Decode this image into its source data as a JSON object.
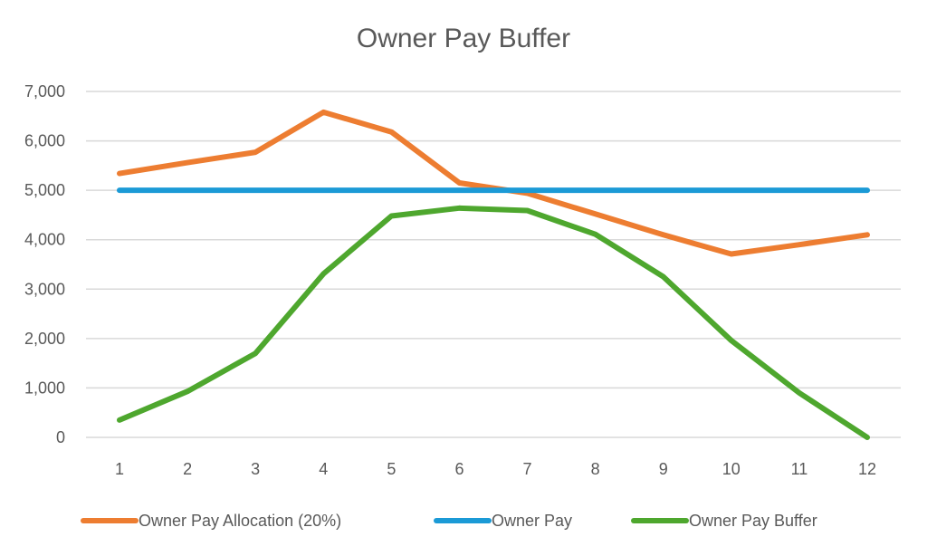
{
  "chart_data": {
    "type": "line",
    "title": "Owner Pay Buffer",
    "xlabel": "",
    "ylabel": "",
    "x": [
      1,
      2,
      3,
      4,
      5,
      6,
      7,
      8,
      9,
      10,
      11,
      12
    ],
    "categories": [
      "1",
      "2",
      "3",
      "4",
      "5",
      "6",
      "7",
      "8",
      "9",
      "10",
      "11",
      "12"
    ],
    "ylim": [
      0,
      7000
    ],
    "yticks": [
      0,
      1000,
      2000,
      3000,
      4000,
      5000,
      6000,
      7000
    ],
    "ytick_labels": [
      "0",
      "1,000",
      "2,000",
      "3,000",
      "4,000",
      "5,000",
      "6,000",
      "7,000"
    ],
    "grid": true,
    "legend_position": "bottom",
    "series": [
      {
        "name": "Owner Pay Allocation (20%)",
        "color": "#ED7D31",
        "values": [
          5340,
          5560,
          5770,
          6580,
          6180,
          5150,
          4940,
          4520,
          4100,
          3710,
          3900,
          4100
        ]
      },
      {
        "name": "Owner Pay",
        "color": "#1B9AD6",
        "values": [
          5000,
          5000,
          5000,
          5000,
          5000,
          5000,
          5000,
          5000,
          5000,
          5000,
          5000,
          5000
        ]
      },
      {
        "name": "Owner Pay Buffer",
        "color": "#4EA72E",
        "values": [
          350,
          930,
          1700,
          3310,
          4480,
          4640,
          4590,
          4110,
          3250,
          1960,
          900,
          0
        ]
      }
    ]
  }
}
